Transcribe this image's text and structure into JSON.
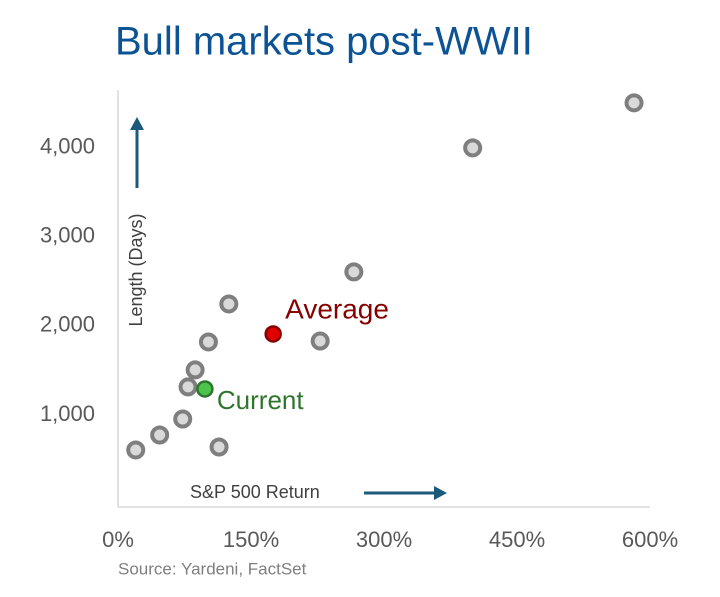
{
  "chart_data": {
    "type": "scatter",
    "title": "Bull markets post-WWII",
    "x_label": "S&P 500 Return",
    "y_label": "Length (Days)",
    "source": "Source: Yardeni, FactSet",
    "color": "#d9d9d9",
    "x": [
      20,
      47,
      73,
      79,
      87,
      102,
      114,
      125,
      228,
      266,
      400,
      582
    ],
    "y": [
      607,
      775,
      955,
      1315,
      1506,
      1820,
      640,
      2247,
      1831,
      2607,
      4000,
      4506
    ],
    "highlights": [
      {
        "name": "Average",
        "color": "#e00000",
        "x": [
          175
        ],
        "y": [
          1910
        ]
      },
      {
        "name": "Current",
        "color": "#4cc34c",
        "x": [
          98
        ],
        "y": [
          1292
        ]
      }
    ],
    "xlim": [
      0,
      600
    ],
    "ylim": [
      0,
      4650
    ],
    "xticks": [
      {
        "value": 0,
        "label": "0%"
      },
      {
        "value": 150,
        "label": "150%"
      },
      {
        "value": 300,
        "label": "300%"
      },
      {
        "value": 450,
        "label": "450%"
      },
      {
        "value": 600,
        "label": "600%"
      }
    ],
    "yticks": [
      {
        "value": 1000,
        "label": "1,000"
      },
      {
        "value": 2000,
        "label": "2,000"
      },
      {
        "value": 3000,
        "label": "3,000"
      },
      {
        "value": 4000,
        "label": "4,000"
      }
    ],
    "grid": false
  }
}
